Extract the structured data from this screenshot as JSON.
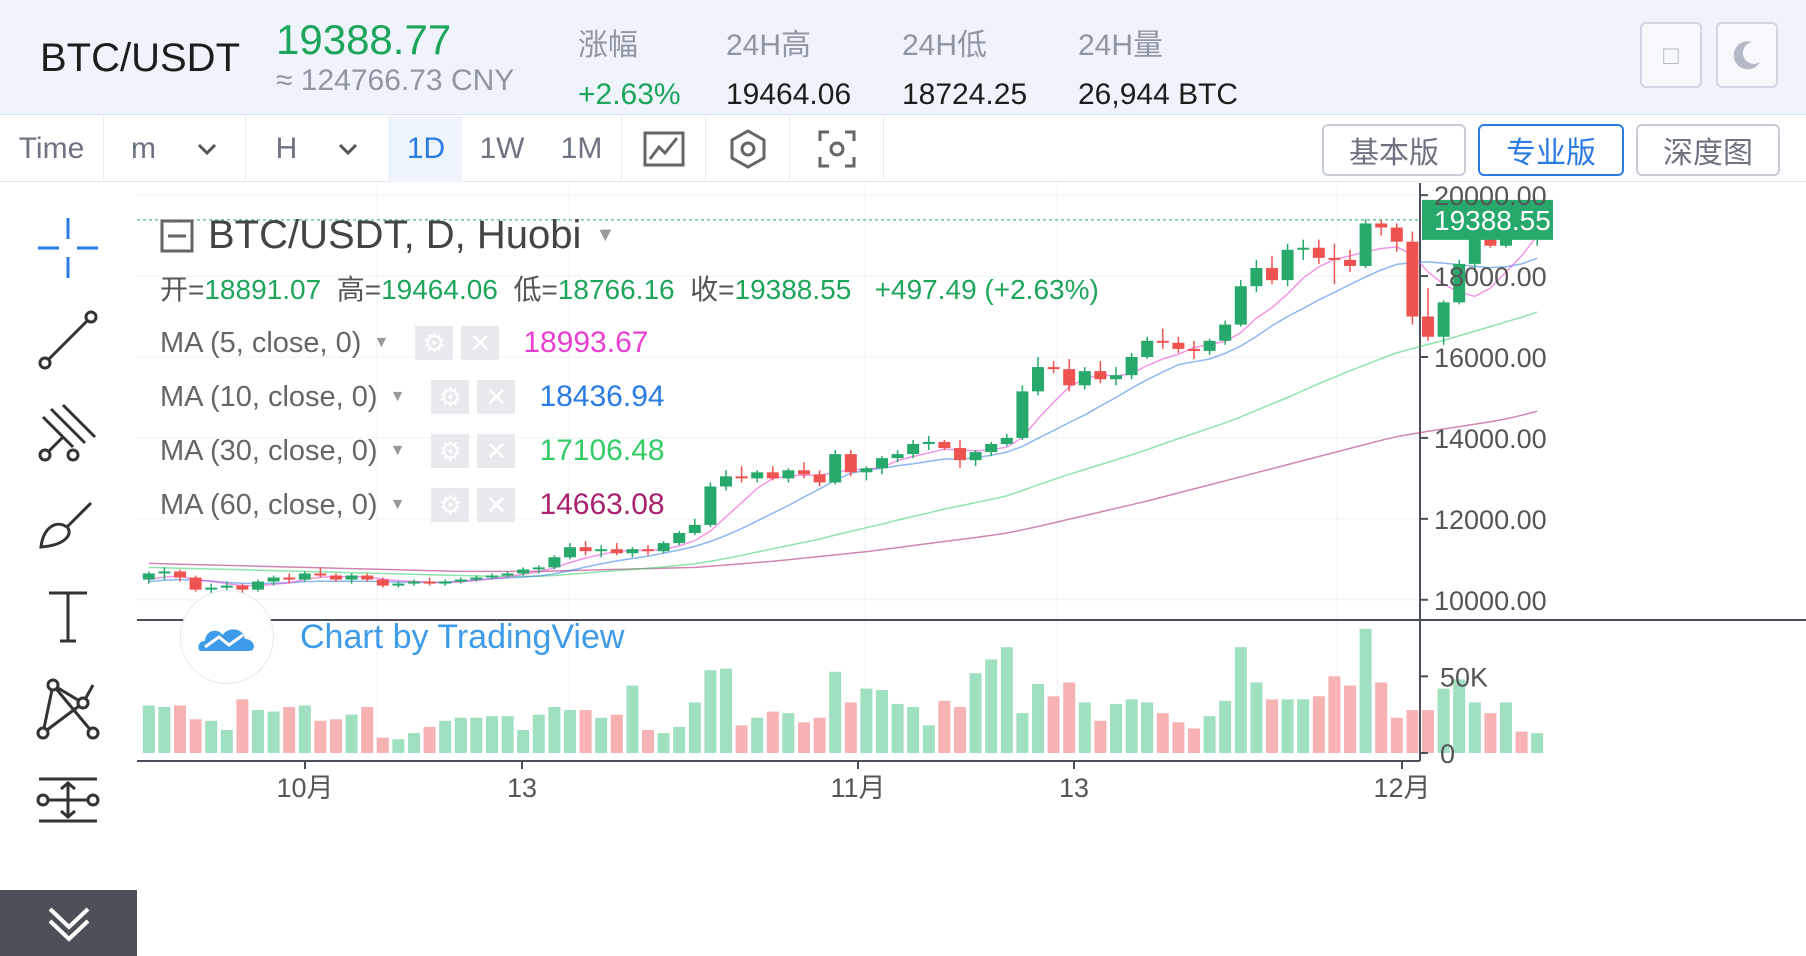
{
  "ticker": {
    "pair": "BTC/USDT",
    "price": "19388.77",
    "cny": "≈ 124766.73 CNY",
    "stats": [
      {
        "label": "涨幅",
        "value": "+2.63%",
        "green": true
      },
      {
        "label": "24H高",
        "value": "19464.06"
      },
      {
        "label": "24H低",
        "value": "18724.25"
      },
      {
        "label": "24H量",
        "value": "26,944 BTC"
      }
    ]
  },
  "toolbar": {
    "time_label": "Time",
    "minute_label": "m",
    "hour_label": "H",
    "intervals": [
      "1D",
      "1W",
      "1M"
    ],
    "active_interval": "1D",
    "versions": [
      "基本版",
      "专业版",
      "深度图"
    ],
    "active_version": "专业版"
  },
  "legend": {
    "title": "BTC/USDT, D, Huobi",
    "open_label": "开=",
    "open": "18891.07",
    "high_label": "高=",
    "high": "19464.06",
    "low_label": "低=",
    "low": "18766.16",
    "close_label": "收=",
    "close": "19388.55",
    "change": "+497.49 (+2.63%)"
  },
  "moving_averages": [
    {
      "label": "MA (5, close, 0)",
      "value": "18993.67",
      "color": "#e83fd1"
    },
    {
      "label": "MA (10, close, 0)",
      "value": "18436.94",
      "color": "#2a7be4"
    },
    {
      "label": "MA (30, close, 0)",
      "value": "17106.48",
      "color": "#33cc66"
    },
    {
      "label": "MA (60, close, 0)",
      "value": "14663.08",
      "color": "#a8226f"
    }
  ],
  "watermark": "Chart by TradingView",
  "colors": {
    "up": "#26a96b",
    "down": "#ef5350",
    "accent": "#2a7be4"
  },
  "chart_data": {
    "type": "candlestick",
    "title": "BTC/USDT, D, Huobi",
    "ylim": [
      9500,
      20300
    ],
    "price_ticks": [
      "20000.00",
      "18000.00",
      "16000.00",
      "14000.00",
      "12000.00",
      "10000.00"
    ],
    "current_price_label": "19388.55",
    "volume_ticks": [
      "50K",
      "0"
    ],
    "volume_ylim": [
      0,
      75000
    ],
    "x_ticks": [
      "10月",
      "13",
      "11月",
      "13",
      "12月"
    ],
    "candles": [
      [
        10500,
        10700,
        10400,
        10650
      ],
      [
        10650,
        10800,
        10500,
        10700
      ],
      [
        10700,
        10750,
        10450,
        10550
      ],
      [
        10550,
        10600,
        10200,
        10250
      ],
      [
        10250,
        10400,
        10150,
        10300
      ],
      [
        10300,
        10450,
        10200,
        10350
      ],
      [
        10350,
        10400,
        10150,
        10250
      ],
      [
        10250,
        10500,
        10200,
        10450
      ],
      [
        10450,
        10600,
        10350,
        10550
      ],
      [
        10550,
        10650,
        10400,
        10500
      ],
      [
        10500,
        10700,
        10450,
        10650
      ],
      [
        10650,
        10800,
        10550,
        10600
      ],
      [
        10600,
        10650,
        10450,
        10500
      ],
      [
        10500,
        10650,
        10400,
        10600
      ],
      [
        10600,
        10650,
        10450,
        10500
      ],
      [
        10500,
        10550,
        10300,
        10350
      ],
      [
        10350,
        10450,
        10300,
        10400
      ],
      [
        10400,
        10500,
        10350,
        10450
      ],
      [
        10450,
        10550,
        10350,
        10400
      ],
      [
        10400,
        10500,
        10350,
        10450
      ],
      [
        10450,
        10550,
        10400,
        10500
      ],
      [
        10500,
        10600,
        10450,
        10550
      ],
      [
        10550,
        10650,
        10500,
        10600
      ],
      [
        10600,
        10700,
        10550,
        10650
      ],
      [
        10650,
        10800,
        10600,
        10750
      ],
      [
        10750,
        10850,
        10650,
        10800
      ],
      [
        10800,
        11100,
        10750,
        11050
      ],
      [
        11050,
        11400,
        11000,
        11300
      ],
      [
        11300,
        11450,
        11100,
        11200
      ],
      [
        11200,
        11350,
        11050,
        11250
      ],
      [
        11250,
        11400,
        11100,
        11150
      ],
      [
        11150,
        11300,
        11050,
        11250
      ],
      [
        11250,
        11350,
        11100,
        11200
      ],
      [
        11200,
        11450,
        11150,
        11400
      ],
      [
        11400,
        11700,
        11350,
        11650
      ],
      [
        11650,
        12000,
        11600,
        11850
      ],
      [
        11850,
        12900,
        11800,
        12800
      ],
      [
        12800,
        13200,
        12700,
        13050
      ],
      [
        13050,
        13300,
        12900,
        13000
      ],
      [
        13000,
        13200,
        12900,
        13150
      ],
      [
        13150,
        13300,
        12950,
        13000
      ],
      [
        13000,
        13250,
        12900,
        13200
      ],
      [
        13200,
        13400,
        13000,
        13100
      ],
      [
        13100,
        13200,
        12800,
        12900
      ],
      [
        12900,
        13700,
        12850,
        13600
      ],
      [
        13600,
        13700,
        13050,
        13150
      ],
      [
        13150,
        13300,
        12950,
        13250
      ],
      [
        13250,
        13550,
        13100,
        13500
      ],
      [
        13500,
        13700,
        13400,
        13600
      ],
      [
        13600,
        13950,
        13500,
        13850
      ],
      [
        13850,
        14050,
        13700,
        13900
      ],
      [
        13900,
        13950,
        13700,
        13750
      ],
      [
        13750,
        13950,
        13250,
        13450
      ],
      [
        13450,
        13700,
        13300,
        13650
      ],
      [
        13650,
        13900,
        13550,
        13850
      ],
      [
        13850,
        14100,
        13800,
        14000
      ],
      [
        14000,
        15300,
        13950,
        15150
      ],
      [
        15150,
        16000,
        15050,
        15750
      ],
      [
        15750,
        15900,
        15600,
        15700
      ],
      [
        15700,
        15950,
        15150,
        15300
      ],
      [
        15300,
        15750,
        15200,
        15650
      ],
      [
        15650,
        15900,
        15350,
        15450
      ],
      [
        15450,
        15750,
        15300,
        15550
      ],
      [
        15550,
        16100,
        15450,
        16000
      ],
      [
        16000,
        16500,
        15950,
        16400
      ],
      [
        16400,
        16700,
        16200,
        16350
      ],
      [
        16350,
        16500,
        16100,
        16200
      ],
      [
        16200,
        16400,
        15950,
        16150
      ],
      [
        16150,
        16450,
        16050,
        16400
      ],
      [
        16400,
        16900,
        16300,
        16800
      ],
      [
        16800,
        17900,
        16750,
        17750
      ],
      [
        17750,
        18400,
        17600,
        18200
      ],
      [
        18200,
        18500,
        17800,
        17900
      ],
      [
        17900,
        18800,
        17750,
        18650
      ],
      [
        18650,
        18900,
        18400,
        18700
      ],
      [
        18700,
        18900,
        18300,
        18450
      ],
      [
        18450,
        18800,
        17800,
        18400
      ],
      [
        18400,
        18650,
        18100,
        18250
      ],
      [
        18250,
        19400,
        18200,
        19300
      ],
      [
        19300,
        19400,
        19000,
        19200
      ],
      [
        19200,
        19300,
        18600,
        18850
      ],
      [
        18850,
        19100,
        16800,
        17000
      ],
      [
        17000,
        17700,
        16400,
        16500
      ],
      [
        16500,
        17400,
        16300,
        17350
      ],
      [
        17350,
        18400,
        17300,
        18300
      ],
      [
        18300,
        19400,
        18100,
        19300
      ],
      [
        19300,
        19900,
        18700,
        18750
      ],
      [
        18750,
        19900,
        18700,
        19200
      ],
      [
        19200,
        19400,
        18900,
        18950
      ],
      [
        18950,
        19480,
        18750,
        19390
      ]
    ],
    "volume": [
      31000,
      30000,
      31000,
      22000,
      21000,
      15000,
      35000,
      28000,
      27000,
      30000,
      31000,
      21000,
      22000,
      25000,
      30000,
      10000,
      9000,
      13000,
      17000,
      21000,
      23000,
      23000,
      24000,
      24000,
      15000,
      25000,
      30000,
      28000,
      28000,
      23000,
      25000,
      44000,
      15000,
      13000,
      17000,
      33000,
      54000,
      55000,
      18000,
      23000,
      27000,
      26000,
      20000,
      23000,
      53000,
      33000,
      42000,
      41000,
      32000,
      30000,
      18000,
      34000,
      30000,
      52000,
      61000,
      69000,
      26000,
      45000,
      37000,
      46000,
      33000,
      21000,
      32000,
      35000,
      33000,
      26000,
      20000,
      16000,
      24000,
      34000,
      69000,
      46000,
      35000,
      35000,
      35000,
      37000,
      50000,
      44000,
      81000,
      46000,
      23000,
      28000,
      28000,
      42000,
      48000,
      33000,
      26000,
      33000,
      14000,
      13000
    ],
    "ma5": [
      10500,
      10560,
      10580,
      10500,
      10460,
      10400,
      10350,
      10350,
      10380,
      10420,
      10500,
      10560,
      10570,
      10570,
      10570,
      10510,
      10470,
      10460,
      10430,
      10420,
      10440,
      10480,
      10520,
      10570,
      10630,
      10690,
      10790,
      10920,
      11030,
      11120,
      11190,
      11230,
      11210,
      11250,
      11330,
      11460,
      11700,
      12050,
      12400,
      12750,
      13000,
      13060,
      13080,
      13070,
      13150,
      13210,
      13230,
      13270,
      13440,
      13540,
      13630,
      13720,
      13710,
      13680,
      13710,
      13770,
      14010,
      14470,
      14880,
      15260,
      15460,
      15560,
      15530,
      15590,
      15790,
      15950,
      16070,
      16230,
      16310,
      16380,
      16600,
      16960,
      17220,
      17560,
      17950,
      18230,
      18410,
      18500,
      18600,
      18680,
      18720,
      18530,
      18100,
      17800,
      17600,
      17500,
      17700,
      18100,
      18500,
      18990
    ],
    "ma10": [
      10450,
      10480,
      10500,
      10480,
      10460,
      10430,
      10410,
      10400,
      10410,
      10420,
      10450,
      10460,
      10460,
      10460,
      10460,
      10450,
      10440,
      10430,
      10430,
      10440,
      10460,
      10490,
      10520,
      10540,
      10560,
      10590,
      10640,
      10720,
      10810,
      10890,
      10960,
      11020,
      11080,
      11150,
      11230,
      11320,
      11440,
      11590,
      11760,
      11950,
      12140,
      12330,
      12540,
      12740,
      12950,
      13130,
      13200,
      13250,
      13310,
      13360,
      13420,
      13480,
      13480,
      13510,
      13570,
      13650,
      13790,
      13990,
      14180,
      14380,
      14570,
      14790,
      15000,
      15230,
      15440,
      15630,
      15810,
      15880,
      15950,
      16090,
      16270,
      16510,
      16770,
      17000,
      17200,
      17410,
      17600,
      17790,
      17980,
      18150,
      18290,
      18330,
      18350,
      18320,
      18280,
      18240,
      18210,
      18230,
      18300,
      18440
    ],
    "ma30": [
      10800,
      10790,
      10780,
      10770,
      10760,
      10750,
      10740,
      10730,
      10720,
      10710,
      10700,
      10690,
      10680,
      10670,
      10660,
      10650,
      10640,
      10630,
      10620,
      10610,
      10600,
      10590,
      10580,
      10580,
      10580,
      10580,
      10600,
      10630,
      10660,
      10690,
      10720,
      10750,
      10780,
      10810,
      10850,
      10890,
      10950,
      11020,
      11100,
      11180,
      11260,
      11340,
      11420,
      11500,
      11600,
      11690,
      11780,
      11870,
      11970,
      12060,
      12150,
      12240,
      12320,
      12400,
      12480,
      12570,
      12700,
      12840,
      12970,
      13100,
      13220,
      13340,
      13460,
      13580,
      13710,
      13850,
      13980,
      14110,
      14240,
      14370,
      14520,
      14680,
      14840,
      15000,
      15170,
      15340,
      15500,
      15660,
      15810,
      15960,
      16100,
      16210,
      16310,
      16410,
      16520,
      16640,
      16750,
      16870,
      16980,
      17110
    ],
    "ma60": [
      10900,
      10890,
      10880,
      10870,
      10860,
      10850,
      10840,
      10830,
      10820,
      10810,
      10800,
      10790,
      10780,
      10770,
      10760,
      10750,
      10740,
      10730,
      10720,
      10710,
      10700,
      10700,
      10700,
      10700,
      10700,
      10700,
      10710,
      10720,
      10730,
      10740,
      10750,
      10760,
      10770,
      10780,
      10790,
      10800,
      10830,
      10860,
      10890,
      10920,
      10950,
      10990,
      11030,
      11070,
      11110,
      11150,
      11190,
      11240,
      11290,
      11340,
      11390,
      11440,
      11490,
      11540,
      11590,
      11650,
      11730,
      11810,
      11900,
      11990,
      12080,
      12170,
      12260,
      12350,
      12440,
      12540,
      12640,
      12740,
      12840,
      12940,
      13040,
      13140,
      13240,
      13340,
      13440,
      13540,
      13640,
      13740,
      13840,
      13940,
      14030,
      14100,
      14160,
      14220,
      14280,
      14340,
      14400,
      14470,
      14560,
      14660
    ]
  }
}
